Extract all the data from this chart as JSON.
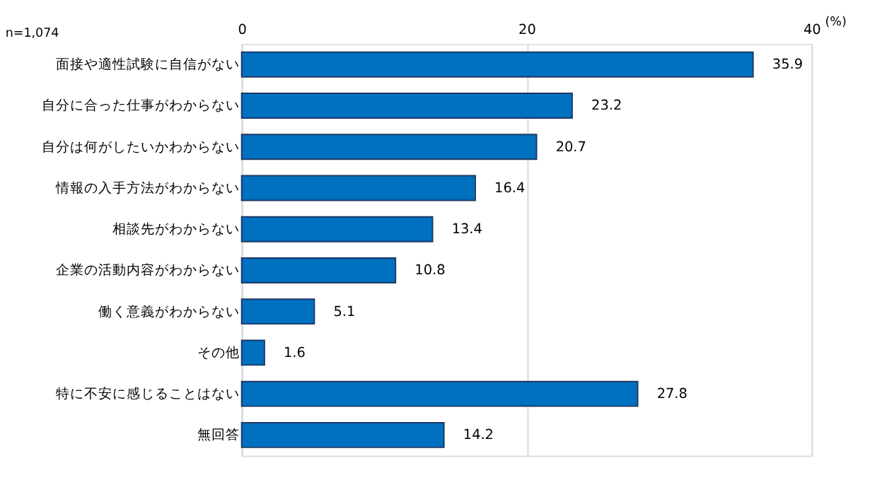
{
  "chart_data": {
    "type": "bar",
    "orientation": "horizontal",
    "categories": [
      "面接や適性試験に自信がない",
      "自分に合った仕事がわからない",
      "自分は何がしたいかわからない",
      "情報の入手方法がわからない",
      "相談先がわからない",
      "企業の活動内容がわからない",
      "働く意義がわからない",
      "その他",
      "特に不安に感じることはない",
      "無回答"
    ],
    "values": [
      35.9,
      23.2,
      20.7,
      16.4,
      13.4,
      10.8,
      5.1,
      1.6,
      27.8,
      14.2
    ],
    "color": "#0070c0",
    "xlim": [
      0,
      40
    ],
    "xticks": [
      0,
      20,
      40
    ],
    "xlabel": "(%)",
    "grid": "x",
    "data_labels": true,
    "annotations": [
      "n=1,074"
    ]
  }
}
